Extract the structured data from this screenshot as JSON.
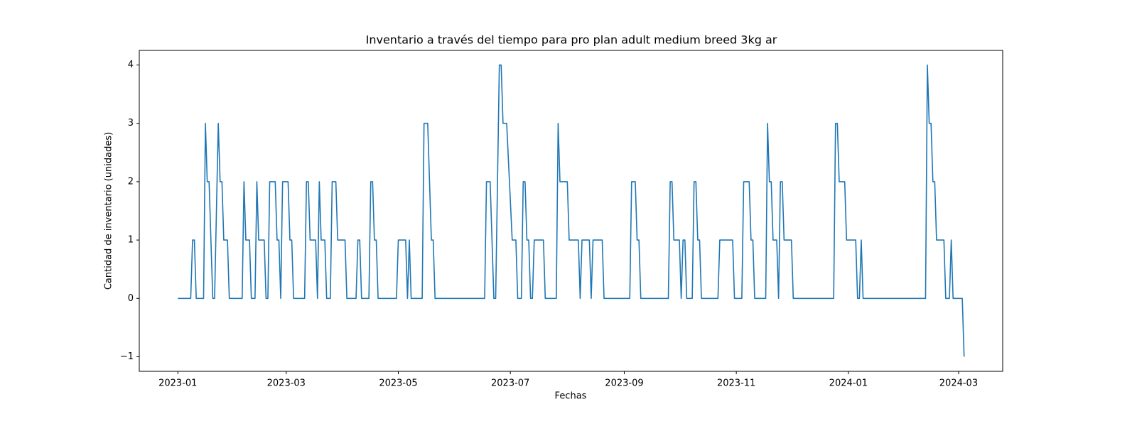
{
  "chart_data": {
    "type": "line",
    "title": "Inventario a través del tiempo para pro plan adult medium breed 3kg ar",
    "xlabel": "Fechas",
    "ylabel": "Cantidad de inventario (unidades)",
    "color": "#1f77b4",
    "x": [
      "2023-01-01",
      "2023-01-08",
      "2023-01-09",
      "2023-01-10",
      "2023-01-11",
      "2023-01-15",
      "2023-01-16",
      "2023-01-17",
      "2023-01-18",
      "2023-01-20",
      "2023-01-21",
      "2023-01-23",
      "2023-01-24",
      "2023-01-25",
      "2023-01-26",
      "2023-01-28",
      "2023-01-29",
      "2023-02-05",
      "2023-02-06",
      "2023-02-07",
      "2023-02-09",
      "2023-02-10",
      "2023-02-12",
      "2023-02-13",
      "2023-02-14",
      "2023-02-17",
      "2023-02-18",
      "2023-02-19",
      "2023-02-20",
      "2023-02-23",
      "2023-02-24",
      "2023-02-25",
      "2023-02-26",
      "2023-02-27",
      "2023-03-02",
      "2023-03-03",
      "2023-03-04",
      "2023-03-05",
      "2023-03-11",
      "2023-03-12",
      "2023-03-13",
      "2023-03-14",
      "2023-03-17",
      "2023-03-18",
      "2023-03-19",
      "2023-03-20",
      "2023-03-22",
      "2023-03-23",
      "2023-03-25",
      "2023-03-26",
      "2023-03-28",
      "2023-03-29",
      "2023-04-02",
      "2023-04-03",
      "2023-04-08",
      "2023-04-09",
      "2023-04-10",
      "2023-04-11",
      "2023-04-15",
      "2023-04-16",
      "2023-04-17",
      "2023-04-18",
      "2023-04-19",
      "2023-04-20",
      "2023-04-30",
      "2023-05-01",
      "2023-05-05",
      "2023-05-06",
      "2023-05-07",
      "2023-05-08",
      "2023-05-14",
      "2023-05-15",
      "2023-05-17",
      "2023-05-19",
      "2023-05-20",
      "2023-05-21",
      "2023-06-17",
      "2023-06-18",
      "2023-06-20",
      "2023-06-22",
      "2023-06-23",
      "2023-06-25",
      "2023-06-26",
      "2023-06-27",
      "2023-06-29",
      "2023-07-02",
      "2023-07-04",
      "2023-07-05",
      "2023-07-07",
      "2023-07-08",
      "2023-07-09",
      "2023-07-10",
      "2023-07-11",
      "2023-07-12",
      "2023-07-13",
      "2023-07-14",
      "2023-07-19",
      "2023-07-20",
      "2023-07-26",
      "2023-07-27",
      "2023-07-28",
      "2023-08-01",
      "2023-08-02",
      "2023-08-07",
      "2023-08-08",
      "2023-08-09",
      "2023-08-13",
      "2023-08-14",
      "2023-08-15",
      "2023-08-20",
      "2023-08-21",
      "2023-09-04",
      "2023-09-05",
      "2023-09-07",
      "2023-09-08",
      "2023-09-09",
      "2023-09-10",
      "2023-09-25",
      "2023-09-26",
      "2023-09-27",
      "2023-09-28",
      "2023-10-01",
      "2023-10-02",
      "2023-10-03",
      "2023-10-04",
      "2023-10-05",
      "2023-10-08",
      "2023-10-09",
      "2023-10-10",
      "2023-10-11",
      "2023-10-12",
      "2023-10-13",
      "2023-10-22",
      "2023-10-23",
      "2023-10-30",
      "2023-10-31",
      "2023-11-04",
      "2023-11-05",
      "2023-11-08",
      "2023-11-09",
      "2023-11-10",
      "2023-11-11",
      "2023-11-17",
      "2023-11-18",
      "2023-11-19",
      "2023-11-20",
      "2023-11-21",
      "2023-11-23",
      "2023-11-24",
      "2023-11-25",
      "2023-11-26",
      "2023-11-27",
      "2023-12-01",
      "2023-12-02",
      "2023-12-24",
      "2023-12-25",
      "2023-12-26",
      "2023-12-27",
      "2023-12-30",
      "2023-12-31",
      "2024-01-05",
      "2024-01-06",
      "2024-01-07",
      "2024-01-08",
      "2024-01-09",
      "2024-02-12",
      "2024-02-13",
      "2024-02-14",
      "2024-02-15",
      "2024-02-16",
      "2024-02-17",
      "2024-02-18",
      "2024-02-22",
      "2024-02-23",
      "2024-02-25",
      "2024-02-26",
      "2024-02-27",
      "2024-03-03",
      "2024-03-04"
    ],
    "values": [
      0,
      0,
      1,
      1,
      0,
      0,
      3,
      2,
      2,
      0,
      0,
      3,
      2,
      2,
      1,
      1,
      0,
      0,
      2,
      1,
      1,
      0,
      0,
      2,
      1,
      1,
      0,
      0,
      2,
      2,
      1,
      1,
      0,
      2,
      2,
      1,
      1,
      0,
      0,
      2,
      2,
      1,
      1,
      0,
      2,
      1,
      1,
      0,
      0,
      2,
      2,
      1,
      1,
      0,
      0,
      1,
      1,
      0,
      0,
      2,
      2,
      1,
      1,
      0,
      0,
      1,
      1,
      0,
      1,
      0,
      0,
      3,
      3,
      1,
      1,
      0,
      0,
      2,
      2,
      0,
      0,
      4,
      4,
      3,
      3,
      1,
      1,
      0,
      0,
      2,
      2,
      1,
      1,
      0,
      0,
      1,
      1,
      0,
      0,
      3,
      2,
      2,
      1,
      1,
      0,
      1,
      1,
      0,
      1,
      1,
      0,
      0,
      2,
      2,
      1,
      1,
      0,
      0,
      2,
      2,
      1,
      1,
      0,
      1,
      1,
      0,
      0,
      2,
      2,
      1,
      1,
      0,
      0,
      1,
      1,
      0,
      0,
      2,
      2,
      1,
      1,
      0,
      0,
      3,
      2,
      2,
      1,
      1,
      0,
      2,
      2,
      1,
      1,
      0,
      0,
      3,
      3,
      2,
      2,
      1,
      1,
      0,
      0,
      1,
      0,
      0,
      4,
      3,
      3,
      2,
      2,
      1,
      1,
      0,
      0,
      1,
      0,
      0,
      -1
    ],
    "xlim": [
      "2022-12-11",
      "2024-03-25"
    ],
    "xticks": [
      {
        "value": "2023-01-01",
        "label": "2023-01"
      },
      {
        "value": "2023-03-01",
        "label": "2023-03"
      },
      {
        "value": "2023-05-01",
        "label": "2023-05"
      },
      {
        "value": "2023-07-01",
        "label": "2023-07"
      },
      {
        "value": "2023-09-01",
        "label": "2023-09"
      },
      {
        "value": "2023-11-01",
        "label": "2023-11"
      },
      {
        "value": "2024-01-01",
        "label": "2024-01"
      },
      {
        "value": "2024-03-01",
        "label": "2024-03"
      }
    ],
    "ylim": [
      -1.25,
      4.25
    ],
    "yticks": [
      {
        "value": -1,
        "label": "−1"
      },
      0,
      1,
      2,
      3,
      4
    ],
    "grid": false
  }
}
